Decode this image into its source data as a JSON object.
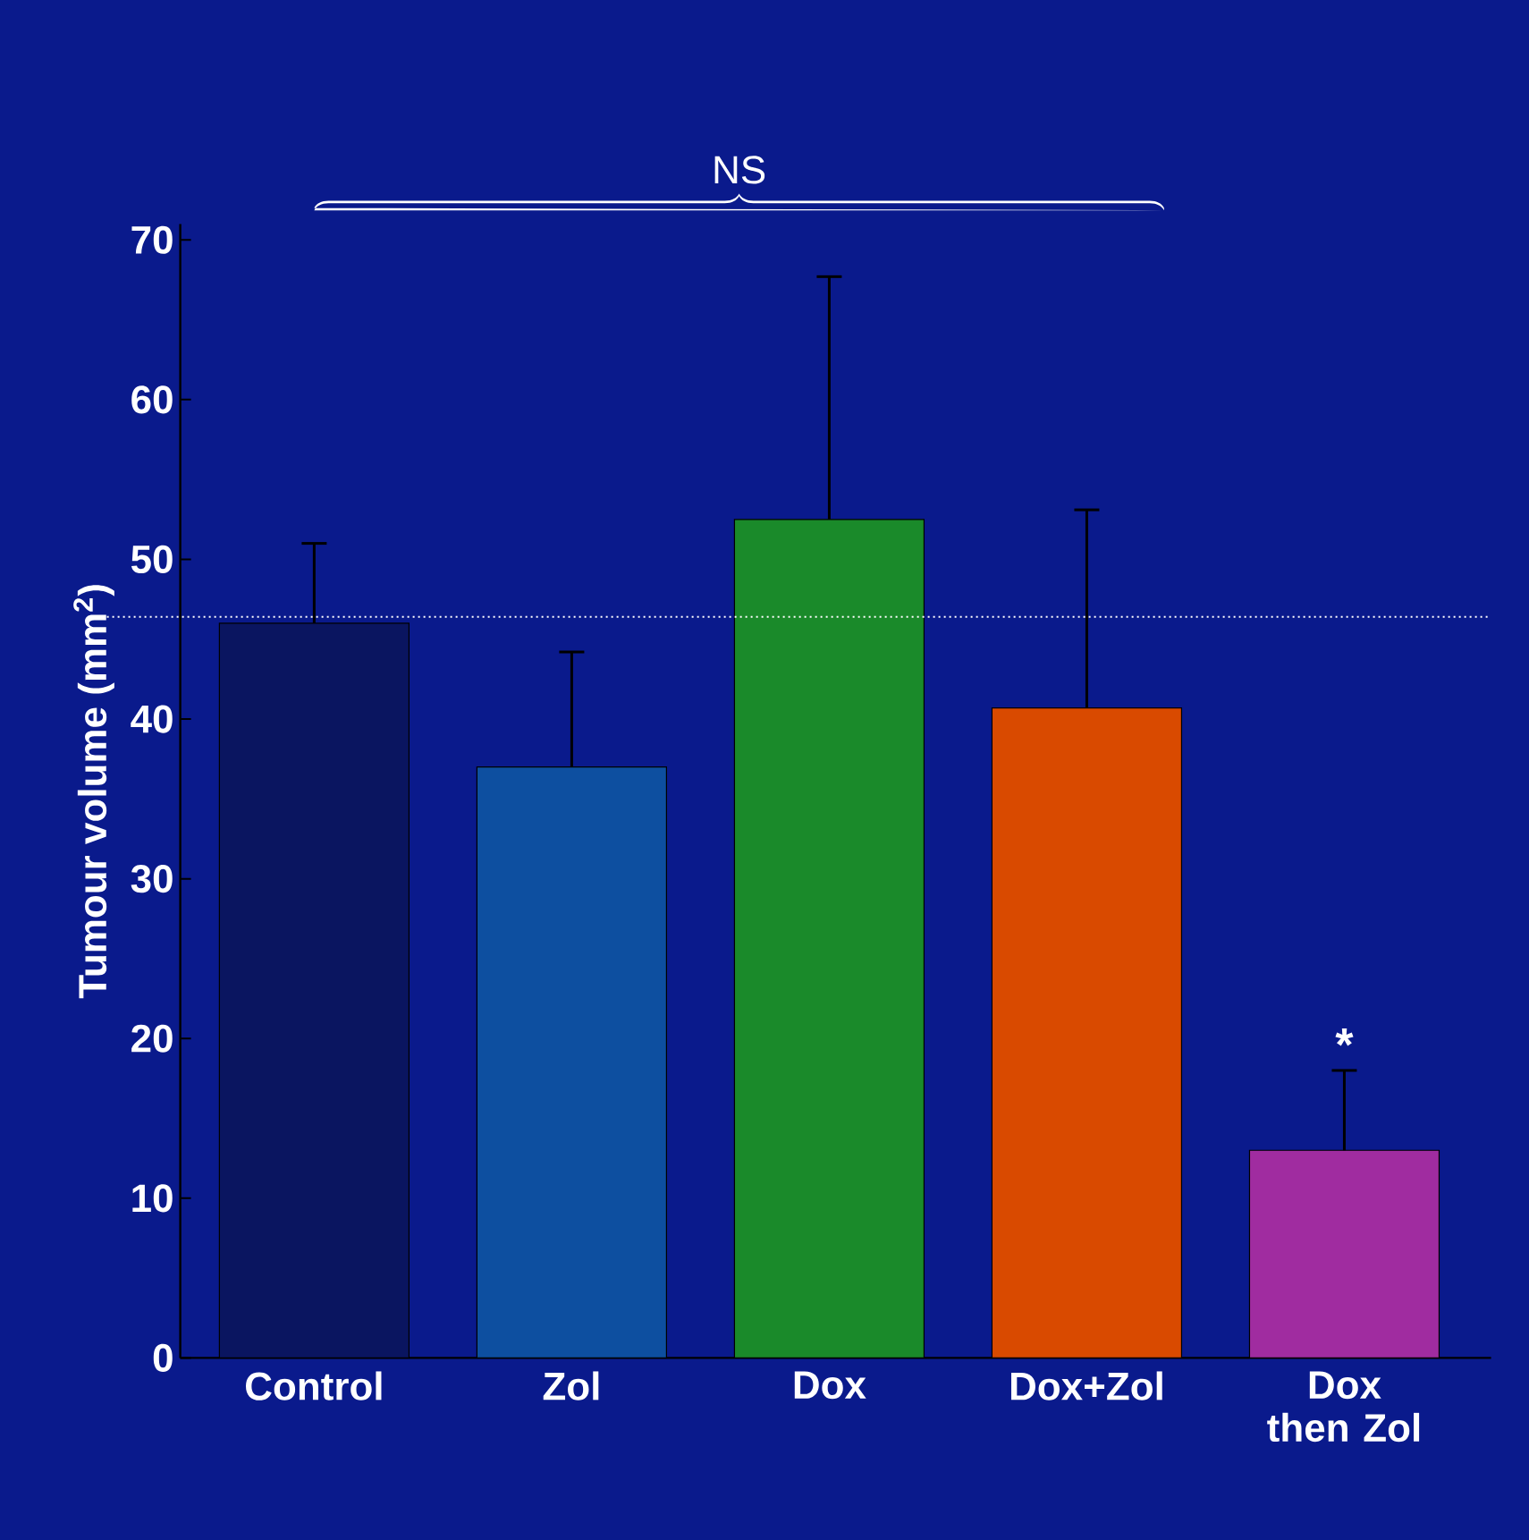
{
  "chart_data": {
    "type": "bar",
    "ylabel": "Tumour volume (mm$^{2}$)",
    "categories": [
      "Control",
      "Zol",
      "Dox",
      "Dox+Zol",
      "Dox then Zol"
    ],
    "values": [
      46,
      37,
      52.5,
      40.7,
      13
    ],
    "errors": [
      [
        46,
        51
      ],
      [
        37,
        44.2
      ],
      [
        52.5,
        67.7
      ],
      [
        40.7,
        53.1
      ],
      [
        13,
        18
      ]
    ],
    "colors": [
      "#0a1560",
      "#0d4fa0",
      "#1a8a2a",
      "#d94a00",
      "#a02ca0"
    ],
    "ylim": [
      0,
      71
    ],
    "yticks": [
      0,
      10,
      20,
      30,
      40,
      50,
      60,
      70
    ],
    "ref_lines": [
      {
        "axis": "y",
        "value": 46.4,
        "color": "#ffffff",
        "line_style": "dotted"
      }
    ],
    "annotations": [
      "NS",
      "*"
    ]
  }
}
